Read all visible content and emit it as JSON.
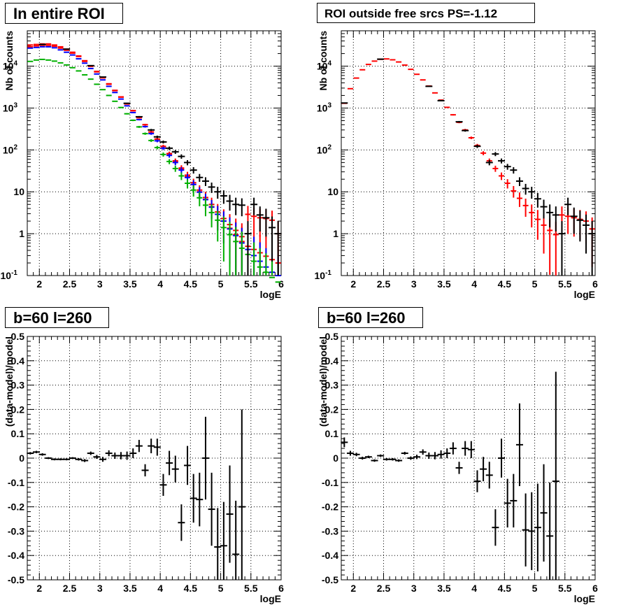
{
  "panels": [
    {
      "id": "p1",
      "title": "In entire ROI",
      "xlabel": "logE",
      "ylabel": "Nb of counts",
      "xlim": [
        1.8,
        6.0
      ],
      "xticks": [
        "2",
        "2.5",
        "3",
        "3.5",
        "4",
        "4.5",
        "5",
        "5.5",
        "6"
      ],
      "yscale": "log",
      "ylim": [
        0.1,
        70000
      ],
      "yticks": [
        "10^-1",
        "1",
        "10",
        "10^2",
        "10^3",
        "10^4"
      ],
      "grid": true
    },
    {
      "id": "p2",
      "title": "ROI outside free srcs PS=-1.12",
      "xlabel": "logE",
      "ylabel": "Nb of counts",
      "xlim": [
        1.8,
        6.0
      ],
      "xticks": [
        "2",
        "2.5",
        "3",
        "3.5",
        "4",
        "4.5",
        "5",
        "5.5",
        "6"
      ],
      "yscale": "log",
      "ylim": [
        0.1,
        70000
      ],
      "yticks": [
        "10^-1",
        "1",
        "10",
        "10^2",
        "10^3",
        "10^4"
      ],
      "grid": true
    },
    {
      "id": "p3",
      "title": "b=60 l=260",
      "xlabel": "logE",
      "ylabel": "(data-model)/model",
      "xlim": [
        1.8,
        6.0
      ],
      "xticks": [
        "2",
        "2.5",
        "3",
        "3.5",
        "4",
        "4.5",
        "5",
        "5.5",
        "6"
      ],
      "yscale": "linear",
      "ylim": [
        -0.5,
        0.5
      ],
      "yticks": [
        "-0.5",
        "-0.4",
        "-0.3",
        "-0.2",
        "-0.1",
        "0",
        "0.1",
        "0.2",
        "0.3",
        "0.4",
        "0.5"
      ],
      "grid": true
    },
    {
      "id": "p4",
      "title": "b=60 l=260",
      "xlabel": "logE",
      "ylabel": "(data-model)/model",
      "xlim": [
        1.8,
        6.0
      ],
      "xticks": [
        "2",
        "2.5",
        "3",
        "3.5",
        "4",
        "4.5",
        "5",
        "5.5",
        "6"
      ],
      "yscale": "linear",
      "ylim": [
        -0.5,
        0.5
      ],
      "yticks": [
        "-0.5",
        "-0.4",
        "-0.3",
        "-0.2",
        "-0.1",
        "0",
        "0.1",
        "0.2",
        "0.3",
        "0.4",
        "0.5"
      ],
      "grid": true
    }
  ],
  "chart_data": [
    {
      "type": "scatter",
      "panel": "p1",
      "x": [
        1.85,
        1.95,
        2.05,
        2.15,
        2.25,
        2.35,
        2.45,
        2.55,
        2.65,
        2.75,
        2.85,
        2.95,
        3.05,
        3.15,
        3.25,
        3.35,
        3.45,
        3.55,
        3.65,
        3.75,
        3.85,
        3.95,
        4.05,
        4.15,
        4.25,
        4.35,
        4.45,
        4.55,
        4.65,
        4.75,
        4.85,
        4.95,
        5.05,
        5.15,
        5.25,
        5.35,
        5.45,
        5.55,
        5.65,
        5.75,
        5.85,
        5.95
      ],
      "series": [
        {
          "color": "#ff0000",
          "values": [
            32000,
            33000,
            34000,
            34000,
            32000,
            29000,
            25500,
            21500,
            17500,
            13500,
            10200,
            7500,
            5400,
            3800,
            2650,
            1850,
            1270,
            870,
            590,
            400,
            268,
            180,
            120,
            80,
            53,
            35,
            23,
            15,
            10,
            6.6,
            4.4,
            2.9,
            2.0,
            1.35,
            0.95,
            0.65,
            0.5,
            0.42,
            0.35,
            0.29,
            0.24,
            0.2
          ]
        },
        {
          "color": "#ff0000",
          "values": [
            29000,
            30500,
            31500,
            31500,
            30000,
            27000,
            24000,
            20500,
            17000,
            13000,
            9900,
            7300,
            5250,
            3700,
            2600,
            1820,
            1250,
            860,
            585,
            400,
            270,
            182,
            122,
            82,
            55,
            37,
            25,
            16.5,
            11,
            7.3,
            5.0,
            3.3,
            2.3,
            1.65,
            1.2,
            0.85,
            2.9,
            2.6,
            2.4,
            2.3,
            2.1,
            1.0
          ]
        },
        {
          "color": "#0000ff",
          "values": [
            27000,
            28000,
            29000,
            29000,
            27500,
            24500,
            21500,
            18500,
            15000,
            11800,
            8800,
            6500,
            4700,
            3300,
            2350,
            1640,
            1130,
            780,
            530,
            360,
            245,
            165,
            110,
            74,
            50,
            33,
            22,
            15,
            9.8,
            6.5,
            4.3,
            2.9,
            2.0,
            1.3,
            0.9,
            0.6,
            0.42,
            0.3,
            0.22,
            0.16,
            0.12,
            0.1
          ]
        },
        {
          "color": "#00b000",
          "values": [
            13000,
            14000,
            14500,
            14000,
            13200,
            12000,
            10700,
            9200,
            7700,
            6200,
            4900,
            3700,
            2750,
            2000,
            1450,
            1030,
            730,
            510,
            355,
            245,
            168,
            114,
            78,
            53,
            36,
            24,
            16,
            11,
            7.2,
            4.8,
            3.2,
            2.1,
            1.4,
            0.95,
            0.65,
            0.45,
            0.32,
            0.22,
            0.16,
            0.12,
            0.09,
            0.07
          ]
        },
        {
          "color": "#000000",
          "values": [
            null,
            null,
            null,
            null,
            null,
            null,
            null,
            null,
            null,
            null,
            null,
            null,
            null,
            null,
            null,
            null,
            null,
            null,
            null,
            null,
            null,
            null,
            null,
            null,
            null,
            null,
            null,
            null,
            null,
            null,
            null,
            null,
            null,
            null,
            null,
            null,
            null,
            null,
            null,
            null,
            null,
            null
          ]
        }
      ],
      "data_points": [
        {
          "x": 2.05,
          "y": 33000
        },
        {
          "x": 2.45,
          "y": 25500
        },
        {
          "x": 2.85,
          "y": 10300
        },
        {
          "x": 3.05,
          "y": 5500
        },
        {
          "x": 3.45,
          "y": 1300
        },
        {
          "x": 3.65,
          "y": 620
        },
        {
          "x": 3.85,
          "y": 300
        },
        {
          "x": 3.95,
          "y": 205
        },
        {
          "x": 4.05,
          "y": 155
        },
        {
          "x": 4.15,
          "y": 110
        },
        {
          "x": 4.25,
          "y": 90
        },
        {
          "x": 4.35,
          "y": 70
        },
        {
          "x": 4.45,
          "y": 50
        },
        {
          "x": 4.55,
          "y": 33
        },
        {
          "x": 4.65,
          "y": 22
        },
        {
          "x": 4.75,
          "y": 18
        },
        {
          "x": 4.85,
          "y": 13
        },
        {
          "x": 4.95,
          "y": 10
        },
        {
          "x": 5.05,
          "y": 8
        },
        {
          "x": 5.15,
          "y": 6
        },
        {
          "x": 5.25,
          "y": 5
        },
        {
          "x": 5.35,
          "y": 4.8
        },
        {
          "x": 5.45,
          "y": 1.0
        },
        {
          "x": 5.55,
          "y": 5.0
        },
        {
          "x": 5.65,
          "y": 2.8
        },
        {
          "x": 5.75,
          "y": 2.4
        },
        {
          "x": 5.85,
          "y": 1.4
        },
        {
          "x": 5.95,
          "y": 1.0
        }
      ]
    },
    {
      "type": "scatter",
      "panel": "p2",
      "x": [
        1.85,
        1.95,
        2.05,
        2.15,
        2.25,
        2.35,
        2.45,
        2.55,
        2.65,
        2.75,
        2.85,
        2.95,
        3.05,
        3.15,
        3.25,
        3.35,
        3.45,
        3.55,
        3.65,
        3.75,
        3.85,
        3.95,
        4.05,
        4.15,
        4.25,
        4.35,
        4.45,
        4.55,
        4.65,
        4.75,
        4.85,
        4.95,
        5.05,
        5.15,
        5.25,
        5.35,
        5.45,
        5.55,
        5.65,
        5.75,
        5.85,
        5.95
      ],
      "series": [
        {
          "color": "#ff0000",
          "values": [
            1300,
            2900,
            5200,
            8200,
            11000,
            13200,
            14600,
            14900,
            14200,
            12600,
            10600,
            8400,
            6400,
            4700,
            3350,
            2300,
            1550,
            1040,
            690,
            455,
            300,
            195,
            128,
            84,
            55,
            36,
            24,
            16,
            10.5,
            7.0,
            4.7,
            3.2,
            2.2,
            1.6,
            1.2,
            0.95,
            2.8,
            2.6,
            2.4,
            2.2,
            2.0,
            1.3
          ]
        }
      ],
      "data_points": [
        {
          "x": 1.85,
          "y": 1320
        },
        {
          "x": 2.45,
          "y": 14700
        },
        {
          "x": 3.25,
          "y": 3300
        },
        {
          "x": 3.45,
          "y": 1500
        },
        {
          "x": 3.75,
          "y": 470
        },
        {
          "x": 3.85,
          "y": 290
        },
        {
          "x": 4.05,
          "y": 122
        },
        {
          "x": 4.25,
          "y": 50
        },
        {
          "x": 4.35,
          "y": 80
        },
        {
          "x": 4.45,
          "y": 55
        },
        {
          "x": 4.55,
          "y": 40
        },
        {
          "x": 4.65,
          "y": 33
        },
        {
          "x": 4.75,
          "y": 18
        },
        {
          "x": 4.85,
          "y": 12
        },
        {
          "x": 4.95,
          "y": 10
        },
        {
          "x": 5.05,
          "y": 6.8
        },
        {
          "x": 5.15,
          "y": 4.4
        },
        {
          "x": 5.25,
          "y": 3.2
        },
        {
          "x": 5.35,
          "y": 2.8
        },
        {
          "x": 5.45,
          "y": 1.0
        },
        {
          "x": 5.55,
          "y": 5.0
        },
        {
          "x": 5.65,
          "y": 2.6
        },
        {
          "x": 5.75,
          "y": 2.1
        },
        {
          "x": 5.85,
          "y": 1.6
        },
        {
          "x": 5.95,
          "y": 1.0
        }
      ]
    },
    {
      "type": "scatter",
      "panel": "p3",
      "points": [
        {
          "x": 1.85,
          "y": 0.02,
          "err": 0.005
        },
        {
          "x": 1.95,
          "y": 0.025,
          "err": 0.005
        },
        {
          "x": 2.05,
          "y": 0.015,
          "err": 0.005
        },
        {
          "x": 2.15,
          "y": 0.0,
          "err": 0.004
        },
        {
          "x": 2.25,
          "y": -0.005,
          "err": 0.004
        },
        {
          "x": 2.35,
          "y": -0.005,
          "err": 0.004
        },
        {
          "x": 2.45,
          "y": -0.005,
          "err": 0.004
        },
        {
          "x": 2.55,
          "y": 0.0,
          "err": 0.004
        },
        {
          "x": 2.65,
          "y": -0.005,
          "err": 0.005
        },
        {
          "x": 2.75,
          "y": -0.01,
          "err": 0.006
        },
        {
          "x": 2.85,
          "y": 0.02,
          "err": 0.007
        },
        {
          "x": 2.95,
          "y": 0.005,
          "err": 0.008
        },
        {
          "x": 3.05,
          "y": -0.005,
          "err": 0.01
        },
        {
          "x": 3.15,
          "y": 0.02,
          "err": 0.012
        },
        {
          "x": 3.25,
          "y": 0.01,
          "err": 0.013
        },
        {
          "x": 3.35,
          "y": 0.01,
          "err": 0.015
        },
        {
          "x": 3.45,
          "y": 0.01,
          "err": 0.017
        },
        {
          "x": 3.55,
          "y": 0.02,
          "err": 0.02
        },
        {
          "x": 3.65,
          "y": 0.05,
          "err": 0.025
        },
        {
          "x": 3.75,
          "y": -0.05,
          "err": 0.025
        },
        {
          "x": 3.85,
          "y": 0.05,
          "err": 0.03
        },
        {
          "x": 3.95,
          "y": 0.045,
          "err": 0.035
        },
        {
          "x": 4.05,
          "y": -0.11,
          "err": 0.045
        },
        {
          "x": 4.15,
          "y": -0.02,
          "err": 0.05
        },
        {
          "x": 4.25,
          "y": -0.045,
          "err": 0.055
        },
        {
          "x": 4.35,
          "y": -0.265,
          "err": 0.075
        },
        {
          "x": 4.45,
          "y": -0.03,
          "err": 0.08
        },
        {
          "x": 4.55,
          "y": -0.165,
          "err": 0.1
        },
        {
          "x": 4.65,
          "y": -0.17,
          "err": 0.11
        },
        {
          "x": 4.75,
          "y": 0.0,
          "err": 0.17
        },
        {
          "x": 4.85,
          "y": -0.21,
          "err": 0.15
        },
        {
          "x": 4.95,
          "y": -0.365,
          "err": 0.16
        },
        {
          "x": 5.05,
          "y": -0.36,
          "err": 0.18
        },
        {
          "x": 5.15,
          "y": -0.23,
          "err": 0.2
        },
        {
          "x": 5.25,
          "y": -0.395,
          "err": 0.22
        },
        {
          "x": 5.35,
          "y": -0.2,
          "err": 0.4
        }
      ]
    },
    {
      "type": "scatter",
      "panel": "p4",
      "points": [
        {
          "x": 1.85,
          "y": 0.065,
          "err": 0.02
        },
        {
          "x": 1.95,
          "y": 0.02,
          "err": 0.01
        },
        {
          "x": 2.05,
          "y": 0.015,
          "err": 0.007
        },
        {
          "x": 2.15,
          "y": 0.0,
          "err": 0.006
        },
        {
          "x": 2.25,
          "y": 0.005,
          "err": 0.005
        },
        {
          "x": 2.35,
          "y": -0.01,
          "err": 0.005
        },
        {
          "x": 2.45,
          "y": 0.01,
          "err": 0.005
        },
        {
          "x": 2.55,
          "y": -0.005,
          "err": 0.005
        },
        {
          "x": 2.65,
          "y": -0.005,
          "err": 0.005
        },
        {
          "x": 2.75,
          "y": -0.01,
          "err": 0.005
        },
        {
          "x": 2.85,
          "y": 0.02,
          "err": 0.006
        },
        {
          "x": 2.95,
          "y": 0.0,
          "err": 0.007
        },
        {
          "x": 3.05,
          "y": 0.005,
          "err": 0.009
        },
        {
          "x": 3.15,
          "y": 0.025,
          "err": 0.011
        },
        {
          "x": 3.25,
          "y": 0.01,
          "err": 0.013
        },
        {
          "x": 3.35,
          "y": 0.01,
          "err": 0.015
        },
        {
          "x": 3.45,
          "y": 0.015,
          "err": 0.017
        },
        {
          "x": 3.55,
          "y": 0.02,
          "err": 0.02
        },
        {
          "x": 3.65,
          "y": 0.04,
          "err": 0.025
        },
        {
          "x": 3.75,
          "y": -0.04,
          "err": 0.025
        },
        {
          "x": 3.85,
          "y": 0.04,
          "err": 0.03
        },
        {
          "x": 3.95,
          "y": 0.035,
          "err": 0.035
        },
        {
          "x": 4.05,
          "y": -0.095,
          "err": 0.045
        },
        {
          "x": 4.15,
          "y": -0.045,
          "err": 0.05
        },
        {
          "x": 4.25,
          "y": -0.07,
          "err": 0.055
        },
        {
          "x": 4.35,
          "y": -0.285,
          "err": 0.075
        },
        {
          "x": 4.45,
          "y": 0.0,
          "err": 0.08
        },
        {
          "x": 4.55,
          "y": -0.185,
          "err": 0.1
        },
        {
          "x": 4.65,
          "y": -0.175,
          "err": 0.11
        },
        {
          "x": 4.75,
          "y": 0.055,
          "err": 0.17
        },
        {
          "x": 4.85,
          "y": -0.295,
          "err": 0.15
        },
        {
          "x": 4.95,
          "y": -0.3,
          "err": 0.16
        },
        {
          "x": 5.05,
          "y": -0.285,
          "err": 0.18
        },
        {
          "x": 5.15,
          "y": -0.225,
          "err": 0.2
        },
        {
          "x": 5.25,
          "y": -0.32,
          "err": 0.22
        },
        {
          "x": 5.35,
          "y": -0.095,
          "err": 0.45
        }
      ]
    }
  ]
}
